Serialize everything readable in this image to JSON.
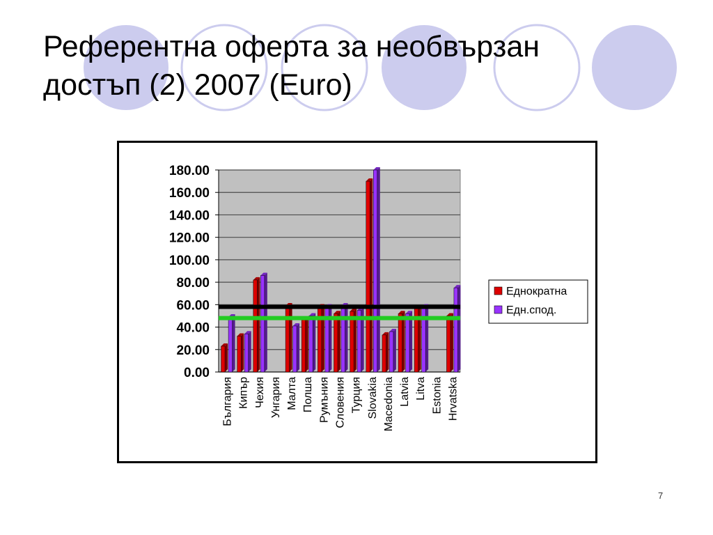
{
  "slide": {
    "title_line1": "Референтна оферта за необвързан",
    "title_line2": "достъп (2) 2007 (Euro)",
    "page_number": "7",
    "accent_color": "#CCCCEE"
  },
  "chart_data": {
    "type": "bar",
    "title": "",
    "xlabel": "",
    "ylabel": "",
    "ylim": [
      0,
      180
    ],
    "yticks": [
      "0.00",
      "20.00",
      "40.00",
      "60.00",
      "80.00",
      "100.00",
      "120.00",
      "140.00",
      "160.00",
      "180.00"
    ],
    "grid": true,
    "legend_position": "right",
    "categories": [
      "България",
      "Кипър",
      "Чехия",
      "Унгария",
      "Малта",
      "Полша",
      "Румъния",
      "Словения",
      "Турция",
      "Slovakia",
      "Macedonia",
      "Latvia",
      "Litva",
      "Estonia",
      "Hrvatska"
    ],
    "series": [
      {
        "name": "Еднократна",
        "color": "#DD0000",
        "values": [
          23,
          32,
          82,
          null,
          59,
          47,
          58,
          52,
          54,
          170,
          33,
          52,
          57,
          null,
          50
        ]
      },
      {
        "name": "Едн.спод.",
        "color": "#9933FF",
        "values": [
          49,
          34,
          86,
          null,
          41,
          50,
          58,
          59,
          55,
          180,
          36,
          52,
          58,
          null,
          75
        ]
      }
    ],
    "reference_lines": [
      {
        "value": 58,
        "color": "#000000"
      },
      {
        "value": 48,
        "color": "#22CC22"
      }
    ]
  }
}
